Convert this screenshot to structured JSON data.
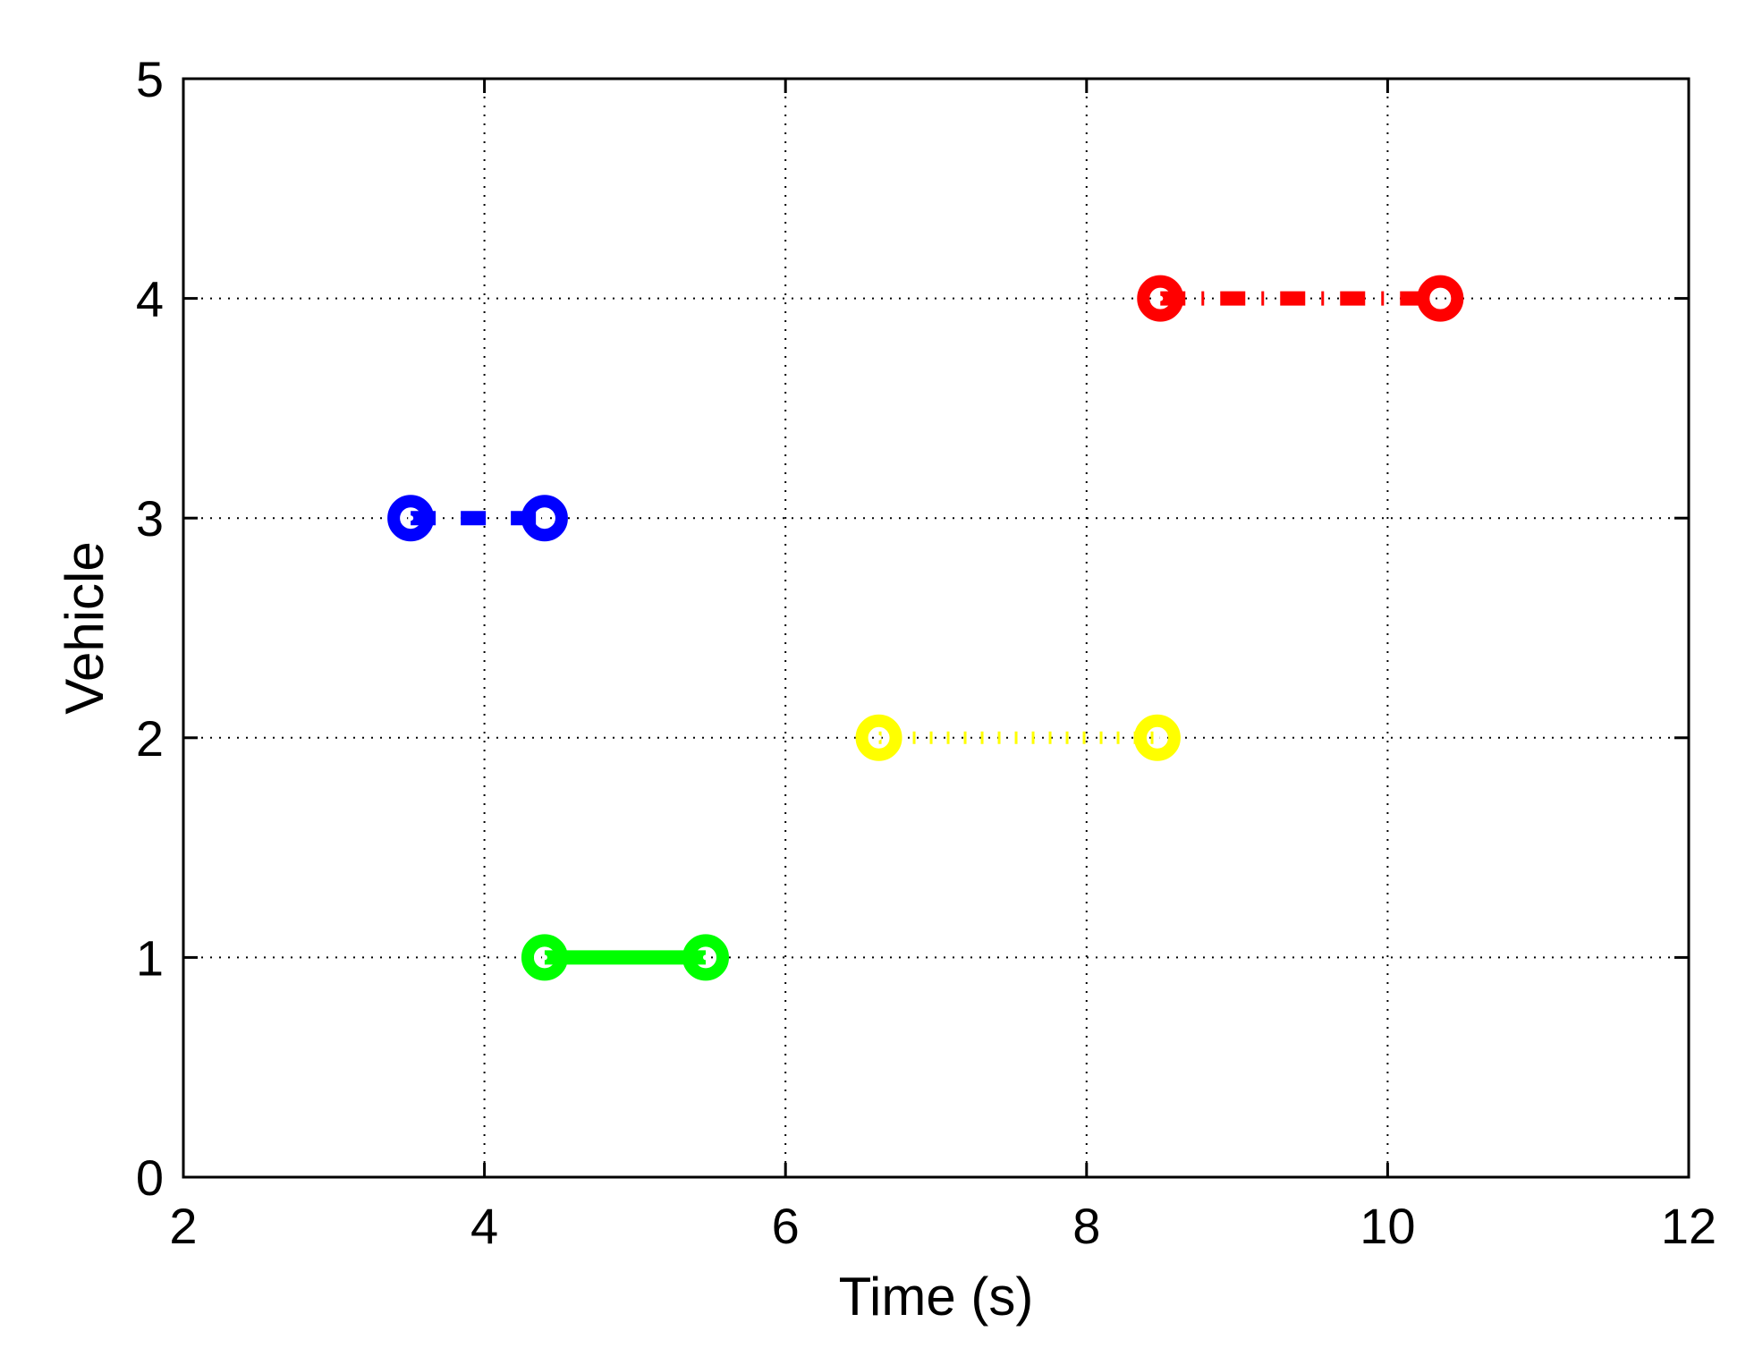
{
  "chart_data": {
    "type": "line",
    "title": "",
    "xlabel": "Time (s)",
    "ylabel": "Vehicle",
    "xlim": [
      2,
      12
    ],
    "ylim": [
      0,
      5
    ],
    "xticks": [
      2,
      4,
      6,
      8,
      10,
      12
    ],
    "yticks": [
      0,
      1,
      2,
      3,
      4,
      5
    ],
    "xtick_labels": [
      "2",
      "4",
      "6",
      "8",
      "10",
      "12"
    ],
    "ytick_labels": [
      "0",
      "1",
      "2",
      "3",
      "4",
      "5"
    ],
    "grid": true,
    "grid_style": "dotted",
    "series": [
      {
        "x": [
          4.4,
          5.47
        ],
        "y": [
          1,
          1
        ],
        "color": "#00ff00",
        "line_style": "solid",
        "marker": "circle"
      },
      {
        "x": [
          6.62,
          8.47
        ],
        "y": [
          2,
          2
        ],
        "color": "#ffff00",
        "line_style": "dotted",
        "marker": "circle"
      },
      {
        "x": [
          3.51,
          4.4
        ],
        "y": [
          3,
          3
        ],
        "color": "#0000ff",
        "line_style": "dashed",
        "marker": "circle"
      },
      {
        "x": [
          8.49,
          10.35
        ],
        "y": [
          4,
          4
        ],
        "color": "#ff0000",
        "line_style": "dashdot",
        "marker": "circle"
      }
    ]
  }
}
